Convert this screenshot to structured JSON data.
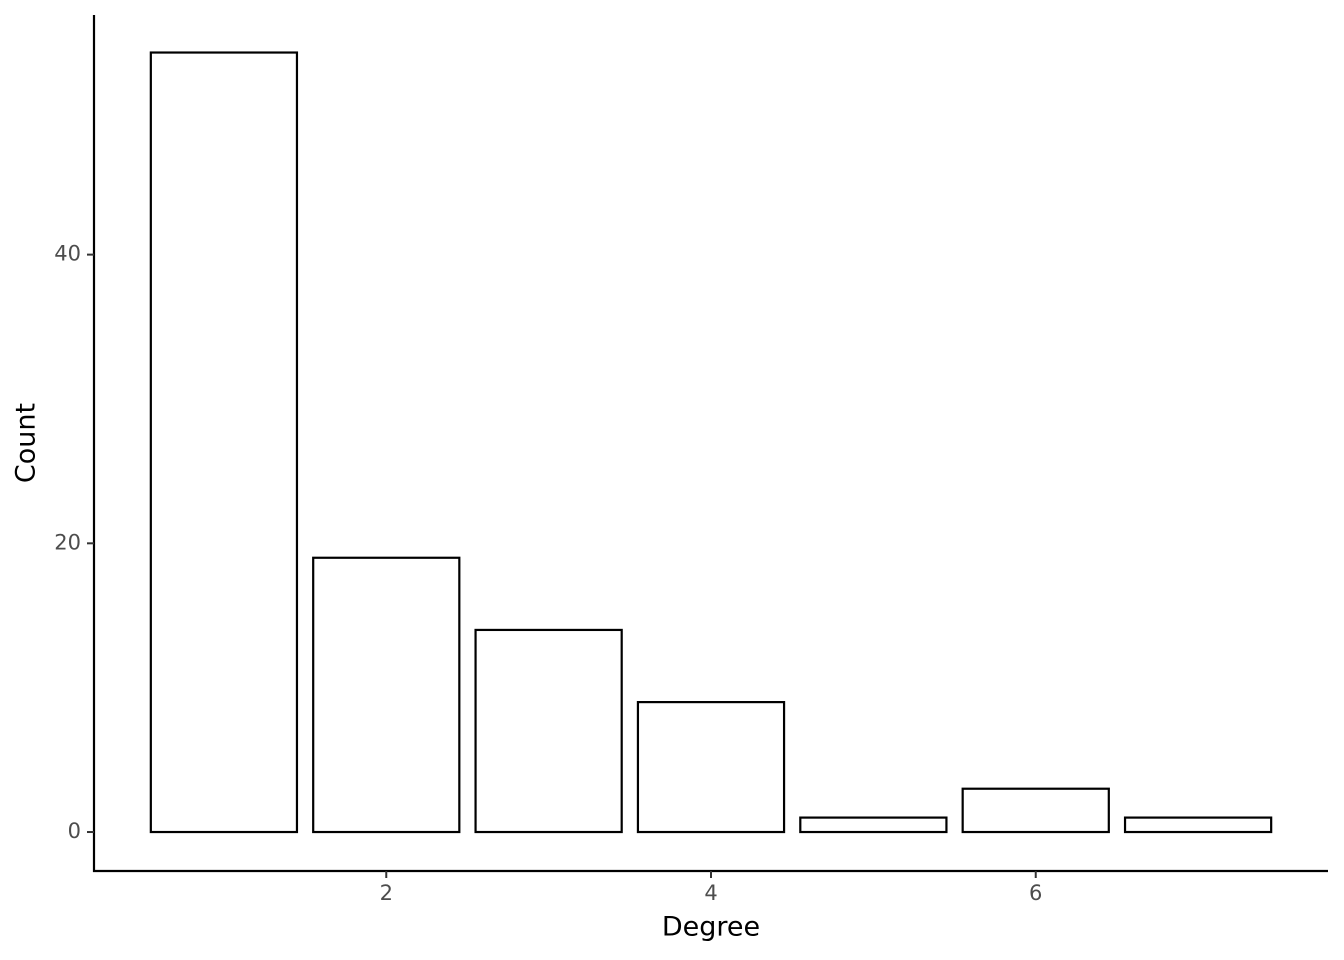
{
  "chart_data": {
    "type": "bar",
    "x": [
      1,
      2,
      3,
      4,
      5,
      6,
      7
    ],
    "values": [
      54,
      19,
      14,
      9,
      1,
      3,
      1
    ],
    "xlabel": "Degree",
    "ylabel": "Count",
    "xlim": [
      0.2,
      7.8
    ],
    "xticks": [
      2,
      4,
      6
    ],
    "ylim": [
      -2.7,
      56.6
    ],
    "yticks": [
      0,
      20,
      40
    ],
    "color": "#ffffff",
    "edgecolor": "#000000",
    "grid": false
  }
}
